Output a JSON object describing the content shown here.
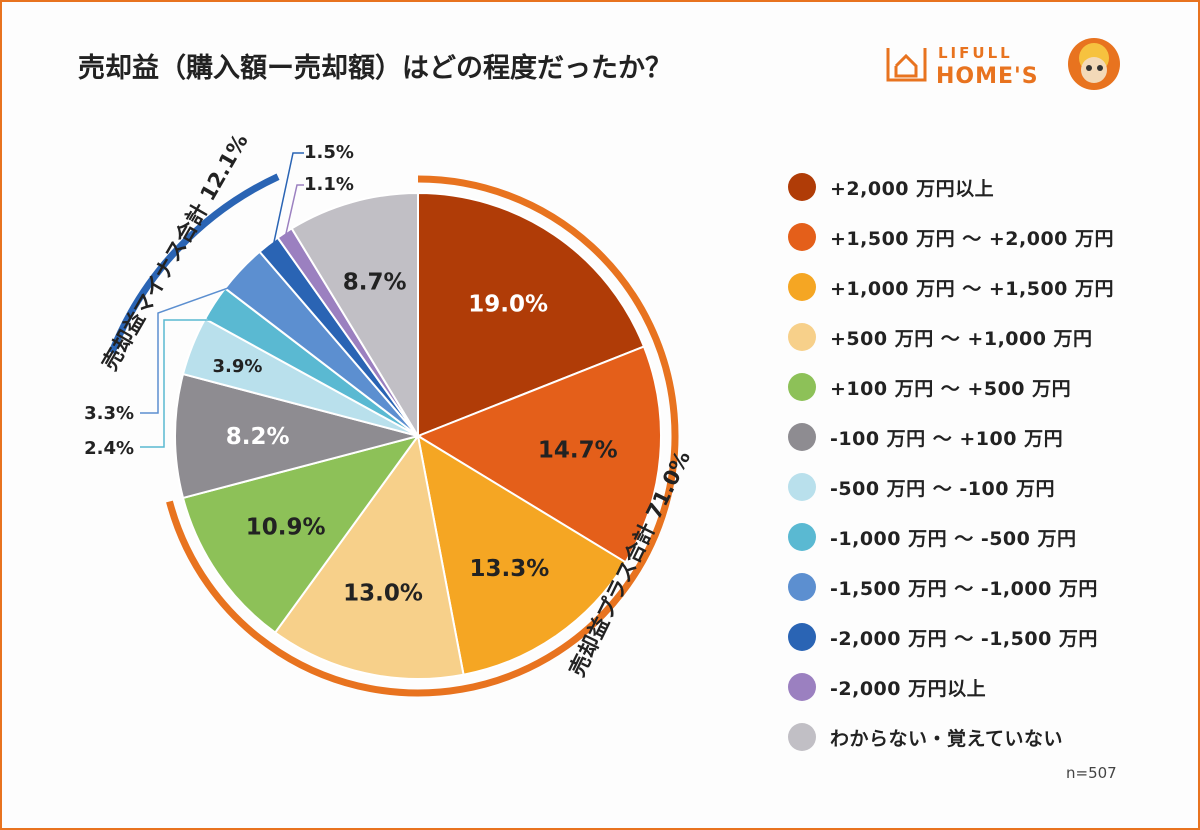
{
  "title": "売却益（購入額ー売却額）はどの程度だったか？",
  "logo": {
    "line1": "LIFULL",
    "line2": "HOME'S"
  },
  "note": "n=507",
  "chart_data": {
    "type": "pie",
    "categories": [
      "+2,000 万円以上",
      "+1,500 万円 ～ +2,000 万円",
      "+1,000 万円 ～ +1,500 万円",
      "+500 万円 ～ +1,000 万円",
      "+100 万円 ～ +500 万円",
      "-100 万円 ～ +100 万円",
      "-500 万円 ～ -100 万円",
      "-1,000 万円 ～ -500 万円",
      "-1,500 万円 ～ -1,000 万円",
      "-2,000 万円 ～ -1,500 万円",
      "-2,000 万円以上",
      "わからない・覚えていない"
    ],
    "values": [
      19.0,
      14.7,
      13.3,
      13.0,
      10.9,
      8.2,
      3.9,
      2.4,
      3.3,
      1.5,
      1.1,
      8.7
    ],
    "labels": [
      "19.0%",
      "14.7%",
      "13.3%",
      "13.0%",
      "10.9%",
      "8.2%",
      "3.9%",
      "2.4%",
      "3.3%",
      "1.5%",
      "1.1%",
      "8.7%"
    ],
    "colors": [
      "#b03c07",
      "#e45f1a",
      "#f5a623",
      "#f7d08a",
      "#8dc158",
      "#8e8c91",
      "#b9e0ec",
      "#5ab9d2",
      "#5c8fd0",
      "#2a64b4",
      "#9b80c0",
      "#c1bfc5"
    ],
    "groups": [
      {
        "label": "売却益プラス合計 71.0%",
        "color": "#e8731f"
      },
      {
        "label": "売却益マイナス合計 12.1%",
        "color": "#2a64b4"
      }
    ]
  }
}
